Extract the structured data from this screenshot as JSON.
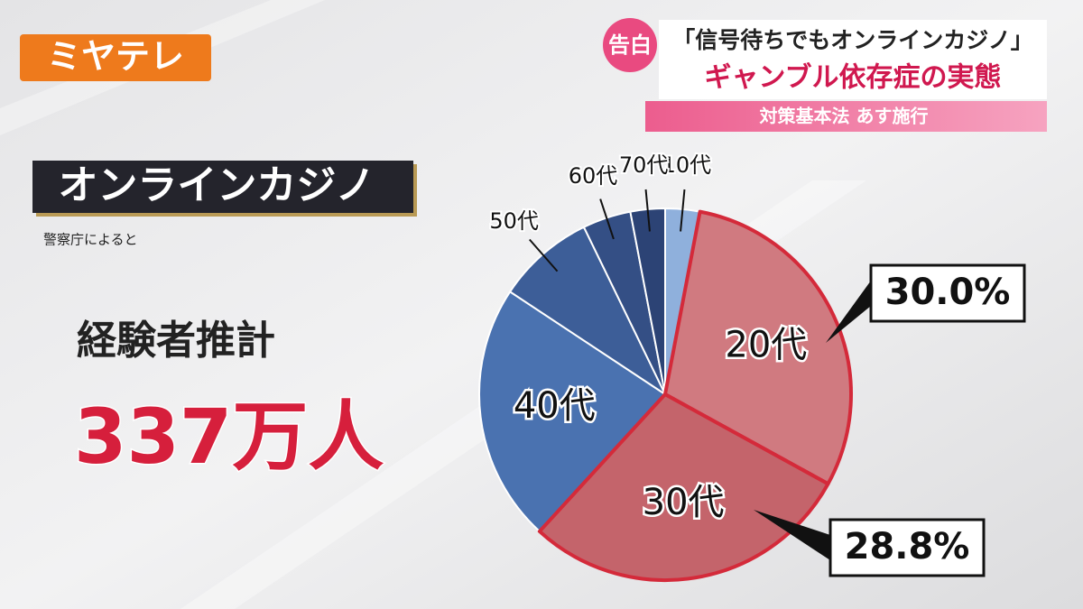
{
  "logo": "ミヤテレ",
  "headline": {
    "tag": "告白",
    "quote": "「信号待ちでもオンラインカジノ」",
    "main": "ギャンブル依存症の実態",
    "sub": "対策基本法 あす施行"
  },
  "panel": {
    "title": "オンラインカジノ",
    "source": "警察庁によると",
    "label": "経験者推計",
    "value": "337万人"
  },
  "chart_data": {
    "type": "pie",
    "categories": [
      "10代",
      "20代",
      "30代",
      "40代",
      "50代",
      "60代",
      "70代"
    ],
    "values": [
      3,
      30.0,
      28.8,
      22.5,
      8.5,
      4.2,
      3
    ],
    "value_labels": [
      null,
      "30.0%",
      "28.8%",
      null,
      null,
      null,
      null
    ],
    "colors": [
      "#8fb0dc",
      "#d07a80",
      "#c4646b",
      "#4a72b0",
      "#3d5e98",
      "#344f85",
      "#2c4375"
    ]
  }
}
